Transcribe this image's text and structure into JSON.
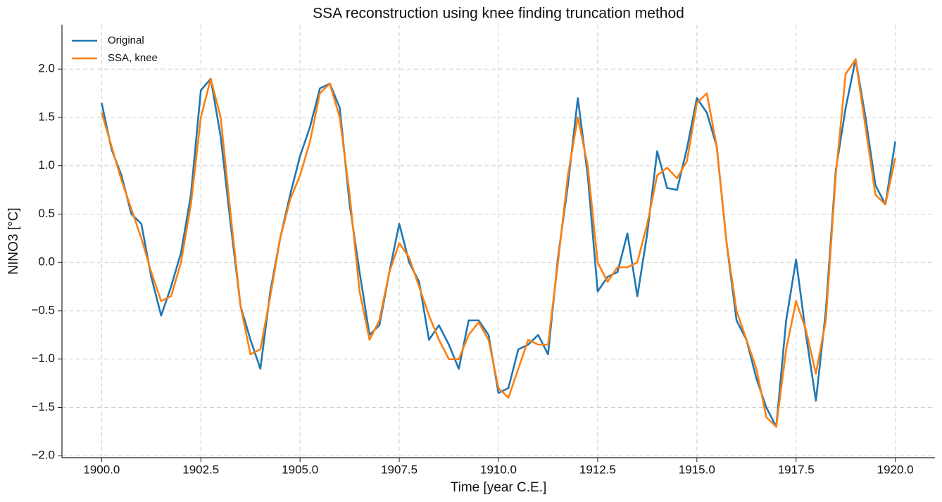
{
  "chart_data": {
    "type": "line",
    "title": "SSA reconstruction using knee finding truncation method",
    "xlabel": "Time [year C.E.]",
    "ylabel": "NINO3 [°C]",
    "legend": "upper left",
    "grid": true,
    "xlim": [
      1899.0,
      1921.0
    ],
    "ylim": [
      -2.02,
      2.46
    ],
    "xticks": [
      {
        "value": 1900,
        "label": "1900.0"
      },
      {
        "value": 1902.5,
        "label": "1902.5"
      },
      {
        "value": 1905,
        "label": "1905.0"
      },
      {
        "value": 1907.5,
        "label": "1907.5"
      },
      {
        "value": 1910,
        "label": "1910.0"
      },
      {
        "value": 1912.5,
        "label": "1912.5"
      },
      {
        "value": 1915,
        "label": "1915.0"
      },
      {
        "value": 1917.5,
        "label": "1917.5"
      },
      {
        "value": 1920,
        "label": "1920.0"
      }
    ],
    "yticks": [
      {
        "value": -2,
        "label": "−2.0"
      },
      {
        "value": -1.5,
        "label": "−1.5"
      },
      {
        "value": -1,
        "label": "−1.0"
      },
      {
        "value": -0.5,
        "label": "−0.5"
      },
      {
        "value": 0,
        "label": "0.0"
      },
      0.5,
      {
        "value": 1,
        "label": "1.0"
      },
      1.5,
      {
        "value": 2,
        "label": "2.0"
      }
    ],
    "x": [
      1900.0,
      1900.25,
      1900.5,
      1900.75,
      1901.0,
      1901.25,
      1901.5,
      1901.75,
      1902.0,
      1902.25,
      1902.5,
      1902.75,
      1903.0,
      1903.25,
      1903.5,
      1903.75,
      1904.0,
      1904.25,
      1904.5,
      1904.75,
      1905.0,
      1905.25,
      1905.5,
      1905.75,
      1906.0,
      1906.25,
      1906.5,
      1906.75,
      1907.0,
      1907.25,
      1907.5,
      1907.75,
      1908.0,
      1908.25,
      1908.5,
      1908.75,
      1909.0,
      1909.25,
      1909.5,
      1909.75,
      1910.0,
      1910.25,
      1910.5,
      1910.75,
      1911.0,
      1911.25,
      1911.5,
      1911.75,
      1912.0,
      1912.25,
      1912.5,
      1912.75,
      1913.0,
      1913.25,
      1913.5,
      1913.75,
      1914.0,
      1914.25,
      1914.5,
      1914.75,
      1915.0,
      1915.25,
      1915.5,
      1915.75,
      1916.0,
      1916.25,
      1916.5,
      1916.75,
      1917.0,
      1917.25,
      1917.5,
      1917.75,
      1918.0,
      1918.25,
      1918.5,
      1918.75,
      1919.0,
      1919.25,
      1919.5,
      1919.75,
      1920.0
    ],
    "series": [
      {
        "name": "Original",
        "color": "#1f77b4",
        "values": [
          1.65,
          1.17,
          0.9,
          0.5,
          0.4,
          -0.15,
          -0.55,
          -0.25,
          0.1,
          0.7,
          1.78,
          1.9,
          1.3,
          0.4,
          -0.45,
          -0.8,
          -1.1,
          -0.3,
          0.25,
          0.7,
          1.1,
          1.4,
          1.8,
          1.85,
          1.6,
          0.6,
          -0.1,
          -0.75,
          -0.65,
          -0.1,
          0.4,
          0.0,
          -0.2,
          -0.8,
          -0.65,
          -0.85,
          -1.1,
          -0.6,
          -0.6,
          -0.75,
          -1.35,
          -1.3,
          -0.9,
          -0.85,
          -0.75,
          -0.95,
          0.05,
          0.8,
          1.7,
          0.9,
          -0.3,
          -0.15,
          -0.1,
          0.3,
          -0.35,
          0.3,
          1.15,
          0.77,
          0.75,
          1.18,
          1.7,
          1.55,
          1.2,
          0.2,
          -0.6,
          -0.8,
          -1.2,
          -1.5,
          -1.7,
          -0.6,
          0.03,
          -0.75,
          -1.43,
          -0.5,
          0.95,
          1.6,
          2.1,
          1.5,
          0.8,
          0.6,
          1.25
        ]
      },
      {
        "name": "SSA, knee",
        "color": "#ff7f0e",
        "values": [
          1.55,
          1.2,
          0.85,
          0.55,
          0.25,
          -0.1,
          -0.4,
          -0.35,
          0.0,
          0.6,
          1.5,
          1.9,
          1.5,
          0.5,
          -0.45,
          -0.95,
          -0.9,
          -0.35,
          0.25,
          0.65,
          0.9,
          1.25,
          1.75,
          1.85,
          1.5,
          0.7,
          -0.3,
          -0.8,
          -0.6,
          -0.1,
          0.2,
          0.05,
          -0.25,
          -0.55,
          -0.8,
          -1.0,
          -1.0,
          -0.75,
          -0.62,
          -0.8,
          -1.3,
          -1.4,
          -1.1,
          -0.8,
          -0.85,
          -0.85,
          0.0,
          0.9,
          1.5,
          1.0,
          0.0,
          -0.2,
          -0.05,
          -0.05,
          0.0,
          0.4,
          0.9,
          0.98,
          0.87,
          1.05,
          1.65,
          1.75,
          1.2,
          0.2,
          -0.5,
          -0.8,
          -1.1,
          -1.6,
          -1.7,
          -0.9,
          -0.4,
          -0.7,
          -1.15,
          -0.6,
          0.9,
          1.95,
          2.1,
          1.4,
          0.7,
          0.6,
          1.08
        ]
      }
    ]
  }
}
